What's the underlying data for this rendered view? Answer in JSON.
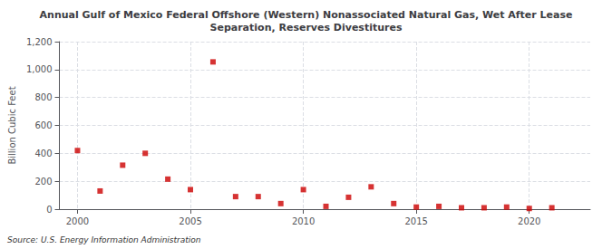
{
  "chart_data": {
    "type": "scatter",
    "title": "Annual Gulf of Mexico Federal Offshore (Western) Nonassociated Natural Gas, Wet After Lease\nSeparation, Reserves Divestitures",
    "ylabel": "Billion Cubic Feet",
    "annotation": "Source: U.S. Energy Information Administration",
    "x": [
      2000,
      2001,
      2002,
      2003,
      2004,
      2005,
      2006,
      2007,
      2008,
      2009,
      2010,
      2011,
      2012,
      2013,
      2014,
      2015,
      2016,
      2017,
      2018,
      2019,
      2020,
      2021
    ],
    "values": [
      420,
      130,
      315,
      400,
      215,
      140,
      1055,
      90,
      90,
      40,
      140,
      20,
      85,
      160,
      40,
      15,
      20,
      10,
      10,
      15,
      5,
      10
    ],
    "color": "#cc0000",
    "marker": "square",
    "xlim": [
      1999.2,
      2022.7
    ],
    "xticks": [
      2000,
      2005,
      2010,
      2015,
      2020
    ],
    "ylim": [
      0,
      1200
    ],
    "yticks": [
      0,
      200,
      400,
      600,
      800,
      {
        "value": 1000,
        "label": "1,000"
      },
      {
        "value": 1200,
        "label": "1,200"
      }
    ],
    "grid": true
  }
}
